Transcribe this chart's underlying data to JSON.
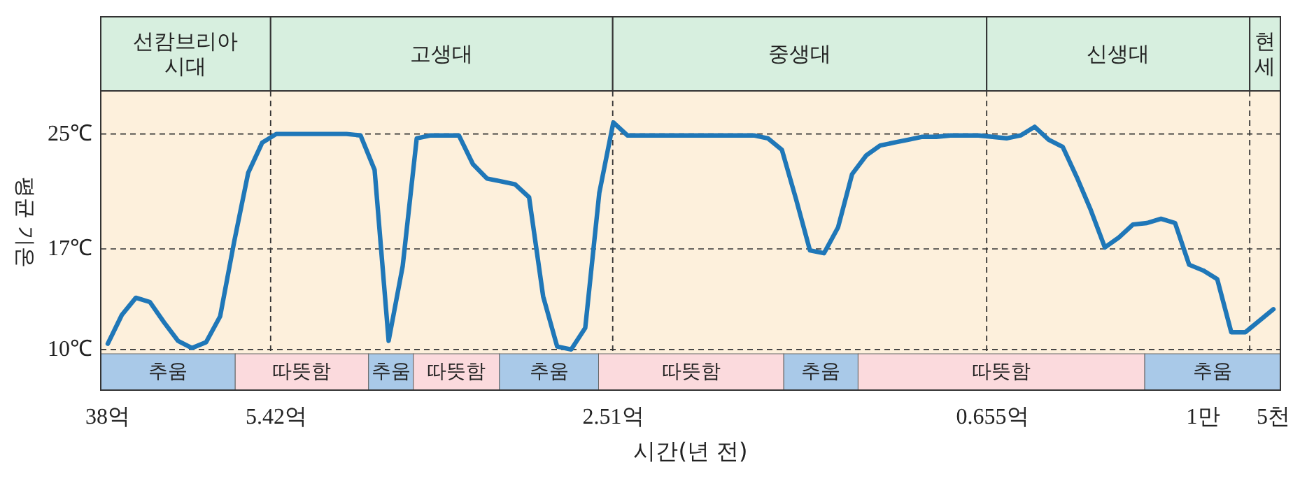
{
  "chart_data": {
    "type": "line",
    "xlabel": "시간(년 전)",
    "ylabel": "평균 기온",
    "categories": [
      "38억",
      null,
      null,
      null,
      null,
      null,
      null,
      null,
      null,
      null,
      null,
      null,
      "5.42억",
      null,
      null,
      null,
      null,
      null,
      null,
      null,
      null,
      null,
      null,
      null,
      null,
      null,
      null,
      null,
      null,
      null,
      null,
      null,
      null,
      null,
      null,
      null,
      "2.51억",
      null,
      null,
      null,
      null,
      null,
      null,
      null,
      null,
      null,
      null,
      null,
      null,
      null,
      null,
      null,
      null,
      null,
      null,
      null,
      null,
      null,
      null,
      null,
      null,
      null,
      null,
      "0.655억",
      null,
      null,
      null,
      null,
      null,
      null,
      null,
      null,
      null,
      null,
      null,
      null,
      null,
      null,
      "1만",
      null,
      null,
      null,
      null,
      "5천"
    ],
    "ylim": [
      9.7,
      28.0
    ],
    "yticks": [
      {
        "value": 10,
        "label": "10℃"
      },
      {
        "value": 17,
        "label": "17℃"
      },
      {
        "value": 25,
        "label": "25℃"
      }
    ],
    "grid": "y",
    "line_style": "solid",
    "marker": "none",
    "annotations": [
      "선캄브리아 시대",
      "고생대",
      "중생대",
      "신생대",
      "현세",
      "추움",
      "따뜻함",
      "추움",
      "따뜻함",
      "추움",
      "따뜻함",
      "추움",
      "따뜻함",
      "추움"
    ],
    "series": [
      {
        "color": "#1f77b8",
        "values": [
          10.4,
          12.4,
          13.6,
          13.3,
          11.9,
          10.6,
          10.1,
          10.5,
          12.3,
          17.5,
          22.3,
          24.4,
          25.0,
          25.0,
          25.0,
          25.0,
          25.0,
          25.0,
          24.9,
          22.5,
          10.6,
          15.8,
          24.7,
          24.9,
          24.9,
          24.9,
          22.9,
          21.9,
          21.7,
          21.5,
          20.6,
          13.7,
          10.2,
          10.0,
          11.5,
          20.9,
          25.8,
          24.9,
          24.9,
          24.9,
          24.9,
          24.9,
          24.9,
          24.9,
          24.9,
          24.9,
          24.9,
          24.7,
          23.9,
          20.5,
          16.9,
          16.7,
          18.5,
          22.2,
          23.5,
          24.2,
          24.4,
          24.6,
          24.8,
          24.8,
          24.9,
          24.9,
          24.9,
          24.8,
          24.7,
          24.9,
          25.5,
          24.6,
          24.1,
          22.0,
          19.7,
          17.1,
          17.8,
          18.7,
          18.8,
          19.1,
          18.8,
          15.9,
          15.5,
          14.9,
          11.2,
          11.2,
          12.0,
          12.8
        ]
      }
    ]
  }
}
